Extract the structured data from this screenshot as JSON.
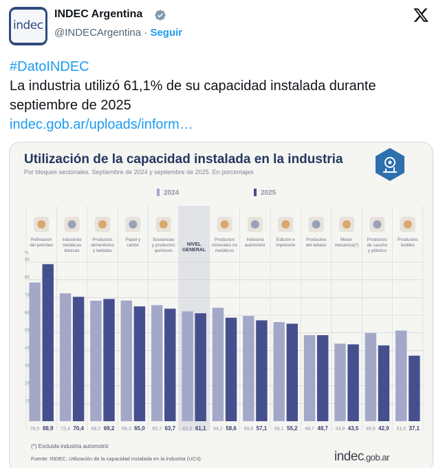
{
  "tweet": {
    "avatar_text": "indec",
    "display_name": "INDEC Argentina",
    "handle": "@INDECArgentina",
    "separator": " · ",
    "follow_label": "Seguir",
    "hashtag": "#DatoINDEC",
    "body": "La industria utilizó 61,1% de su capacidad instalada durante septiembre de 2025",
    "link": "indec.gob.ar/uploads/inform…",
    "icons": {
      "verified": "verified-badge-icon",
      "platform": "x-logo-icon"
    },
    "colors": {
      "link": "#1d9bf0",
      "muted": "#536471"
    }
  },
  "infographic": {
    "title": "Utilización de la capacidad instalada en la industria",
    "subtitle": "Por bloques sectoriales. Septiembre de 2024 y septiembre de 2025. En porcentajes",
    "footnote": "(*) Excluida industria automotriz",
    "source": "Fuente: INDEC, Utilización de la capacidad instalada en la industria (UCII).",
    "brand_main": "indec",
    "brand_domain": ".gob.ar"
  },
  "chart_data": {
    "type": "bar",
    "title": "Utilización de la capacidad instalada en la industria",
    "ylabel": "%",
    "ylim": [
      0,
      90
    ],
    "yticks": [
      10,
      20,
      30,
      40,
      50,
      60,
      70,
      80,
      90
    ],
    "grid": true,
    "legend_position": "top",
    "categories": [
      "Refinación del petróleo",
      "Industrias metálicas básicas",
      "Productos alimenticios y bebidas",
      "Papel y cartón",
      "Sustancias y productos químicos",
      "NIVEL GENERAL",
      "Productos minerales no metálicos",
      "Industria automotriz",
      "Edición e impresión",
      "Productos del tabaco",
      "Metal-mecánica(*)",
      "Productos de caucho y plástico",
      "Productos textiles"
    ],
    "category_lines": [
      [
        "Refinación",
        "del petróleo"
      ],
      [
        "Industrias",
        "metálicas",
        "básicas"
      ],
      [
        "Productos",
        "alimenticios",
        "y bebidas"
      ],
      [
        "Papel y",
        "cartón"
      ],
      [
        "Sustancias",
        "y productos",
        "químicos"
      ],
      [
        "NIVEL",
        "GENERAL"
      ],
      [
        "Productos",
        "minerales no",
        "metálicos"
      ],
      [
        "Industria",
        "automotriz"
      ],
      [
        "Edición e",
        "impresión"
      ],
      [
        "Productos",
        "del tabaco"
      ],
      [
        "Metal-",
        "mecánica(*)"
      ],
      [
        "Productos",
        "de caucho",
        "y plástico"
      ],
      [
        "Productos",
        "textiles"
      ]
    ],
    "series": [
      {
        "name": "2024",
        "color": "#a3a8c9",
        "values": [
          78.5,
          72.4,
          68.2,
          68.3,
          65.7,
          62.2,
          64.2,
          59.6,
          56.1,
          48.7,
          43.9,
          49.9,
          51.3
        ],
        "labels": [
          "78,5",
          "72,4",
          "68,2",
          "68,3",
          "65,7",
          "62,2",
          "64,2",
          "59,6",
          "56,1",
          "48,7",
          "43,9",
          "49,9",
          "51,3"
        ]
      },
      {
        "name": "2025",
        "color": "#464f8e",
        "values": [
          88.9,
          70.4,
          69.2,
          65.0,
          63.7,
          61.1,
          58.6,
          57.1,
          55.2,
          48.7,
          43.5,
          42.9,
          37.1
        ],
        "labels": [
          "88,9",
          "70,4",
          "69,2",
          "65,0",
          "63,7",
          "61,1",
          "58,6",
          "57,1",
          "55,2",
          "48,7",
          "43,5",
          "42,9",
          "37,1"
        ]
      }
    ],
    "highlight_category": "NIVEL GENERAL"
  }
}
